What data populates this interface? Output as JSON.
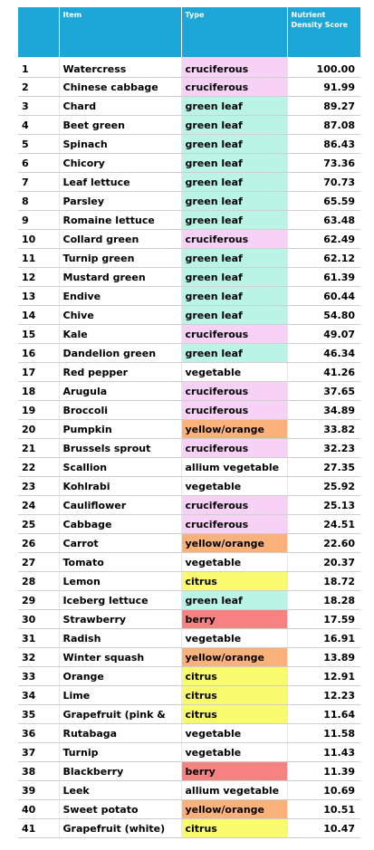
{
  "headers": {
    "rank": "",
    "item": "Item",
    "type": "Type",
    "score": "Nutrient Density Score"
  },
  "type_colors": {
    "cruciferous": "#f8d2f6",
    "green leaf": "#b9f4e6",
    "yellow/orange": "#fbb27a",
    "citrus": "#fafa6e",
    "berry": "#f88282",
    "vegetable": "#ffffff",
    "allium vegetable": "#ffffff"
  },
  "rows": [
    {
      "rank": "1",
      "item": "Watercress",
      "type": "cruciferous",
      "score": "100.00"
    },
    {
      "rank": "2",
      "item": "Chinese cabbage",
      "type": "cruciferous",
      "score": "91.99"
    },
    {
      "rank": "3",
      "item": "Chard",
      "type": "green leaf",
      "score": "89.27"
    },
    {
      "rank": "4",
      "item": "Beet green",
      "type": "green leaf",
      "score": "87.08"
    },
    {
      "rank": "5",
      "item": "Spinach",
      "type": "green leaf",
      "score": "86.43"
    },
    {
      "rank": "6",
      "item": "Chicory",
      "type": "green leaf",
      "score": "73.36"
    },
    {
      "rank": "7",
      "item": "Leaf lettuce",
      "type": "green leaf",
      "score": "70.73"
    },
    {
      "rank": "8",
      "item": "Parsley",
      "type": "green leaf",
      "score": "65.59"
    },
    {
      "rank": "9",
      "item": "Romaine lettuce",
      "type": "green leaf",
      "score": "63.48"
    },
    {
      "rank": "10",
      "item": "Collard green",
      "type": "cruciferous",
      "score": "62.49"
    },
    {
      "rank": "11",
      "item": "Turnip green",
      "type": "green leaf",
      "score": "62.12"
    },
    {
      "rank": "12",
      "item": "Mustard green",
      "type": "green leaf",
      "score": "61.39"
    },
    {
      "rank": "13",
      "item": "Endive",
      "type": "green leaf",
      "score": "60.44"
    },
    {
      "rank": "14",
      "item": "Chive",
      "type": "green leaf",
      "score": "54.80"
    },
    {
      "rank": "15",
      "item": "Kale",
      "type": "cruciferous",
      "score": "49.07"
    },
    {
      "rank": "16",
      "item": "Dandelion green",
      "type": "green leaf",
      "score": "46.34"
    },
    {
      "rank": "17",
      "item": "Red pepper",
      "type": "vegetable",
      "score": "41.26"
    },
    {
      "rank": "18",
      "item": "Arugula",
      "type": "cruciferous",
      "score": "37.65"
    },
    {
      "rank": "19",
      "item": "Broccoli",
      "type": "cruciferous",
      "score": "34.89"
    },
    {
      "rank": "20",
      "item": "Pumpkin",
      "type": "yellow/orange",
      "score": "33.82"
    },
    {
      "rank": "21",
      "item": "Brussels sprout",
      "type": "cruciferous",
      "score": "32.23"
    },
    {
      "rank": "22",
      "item": "Scallion",
      "type": "allium vegetable",
      "score": "27.35"
    },
    {
      "rank": "23",
      "item": "Kohlrabi",
      "type": "vegetable",
      "score": "25.92"
    },
    {
      "rank": "24",
      "item": "Cauliflower",
      "type": "cruciferous",
      "score": "25.13"
    },
    {
      "rank": "25",
      "item": "Cabbage",
      "type": "cruciferous",
      "score": "24.51"
    },
    {
      "rank": "26",
      "item": "Carrot",
      "type": "yellow/orange",
      "score": "22.60"
    },
    {
      "rank": "27",
      "item": "Tomato",
      "type": "vegetable",
      "score": "20.37"
    },
    {
      "rank": "28",
      "item": "Lemon",
      "type": "citrus",
      "score": "18.72"
    },
    {
      "rank": "29",
      "item": "Iceberg lettuce",
      "type": "green leaf",
      "score": "18.28"
    },
    {
      "rank": "30",
      "item": "Strawberry",
      "type": "berry",
      "score": "17.59"
    },
    {
      "rank": "31",
      "item": "Radish",
      "type": "vegetable",
      "score": "16.91"
    },
    {
      "rank": "32",
      "item": "Winter squash",
      "type": "yellow/orange",
      "score": "13.89"
    },
    {
      "rank": "33",
      "item": "Orange",
      "type": "citrus",
      "score": "12.91"
    },
    {
      "rank": "34",
      "item": "Lime",
      "type": "citrus",
      "score": "12.23"
    },
    {
      "rank": "35",
      "item": "Grapefruit (pink &",
      "type": "citrus",
      "score": "11.64"
    },
    {
      "rank": "36",
      "item": "Rutabaga",
      "type": "vegetable",
      "score": "11.58"
    },
    {
      "rank": "37",
      "item": "Turnip",
      "type": "vegetable",
      "score": "11.43"
    },
    {
      "rank": "38",
      "item": "Blackberry",
      "type": "berry",
      "score": "11.39"
    },
    {
      "rank": "39",
      "item": "Leek",
      "type": "allium vegetable",
      "score": "10.69"
    },
    {
      "rank": "40",
      "item": "Sweet potato",
      "type": "yellow/orange",
      "score": "10.51"
    },
    {
      "rank": "41",
      "item": "Grapefruit (white)",
      "type": "citrus",
      "score": "10.47"
    }
  ]
}
